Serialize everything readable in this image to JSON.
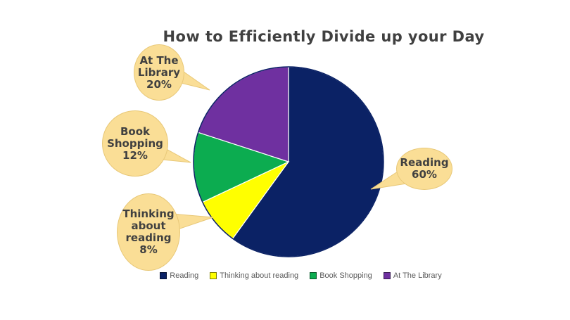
{
  "chart_data": {
    "type": "pie",
    "title": "How to Efficiently Divide up your Day",
    "categories": [
      "Reading",
      "Thinking about reading",
      "Book Shopping",
      "At The Library"
    ],
    "values": [
      60,
      8,
      12,
      20
    ],
    "unit": "%",
    "colors": [
      "#0B2265",
      "#FFFF00",
      "#0CAC50",
      "#6F30A0"
    ],
    "start_angle_deg": 0,
    "direction": "clockwise",
    "legend_position": "bottom"
  },
  "callouts": [
    {
      "target": "At The Library",
      "lines": [
        "At The",
        "Library",
        "20%"
      ]
    },
    {
      "target": "Book Shopping",
      "lines": [
        "Book",
        "Shopping",
        "12%"
      ]
    },
    {
      "target": "Thinking about reading",
      "lines": [
        "Thinking",
        "about",
        "reading",
        "8%"
      ]
    },
    {
      "target": "Reading",
      "lines": [
        "Reading",
        "60%"
      ]
    }
  ],
  "styles": {
    "background": "#FFFFFF",
    "bubble_fill": "#FADE96",
    "bubble_border": "#E8C878",
    "bubble_text": "#404040",
    "title_color": "#404040",
    "legend_text_color": "#595959",
    "slice_separator": "#FFFFFF"
  }
}
